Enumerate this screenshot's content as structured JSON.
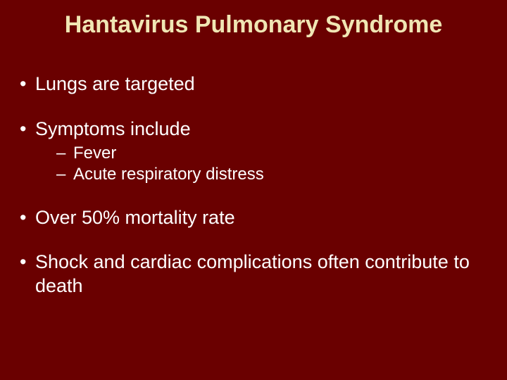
{
  "slide": {
    "background_color": "#6a0000",
    "title": {
      "text": "Hantavirus Pulmonary Syndrome",
      "color": "#f0e6b4",
      "fontsize": 34,
      "font_weight": "bold"
    },
    "body": {
      "color": "#ffffff",
      "bullet_fontsize": 27,
      "sub_fontsize": 24,
      "items": [
        {
          "text": "Lungs are targeted"
        },
        {
          "text": "Symptoms include",
          "sub": [
            {
              "text": "Fever"
            },
            {
              "text": "Acute respiratory distress"
            }
          ]
        },
        {
          "text": "Over 50% mortality rate"
        },
        {
          "text": "Shock and cardiac complications often contribute to death"
        }
      ]
    }
  }
}
